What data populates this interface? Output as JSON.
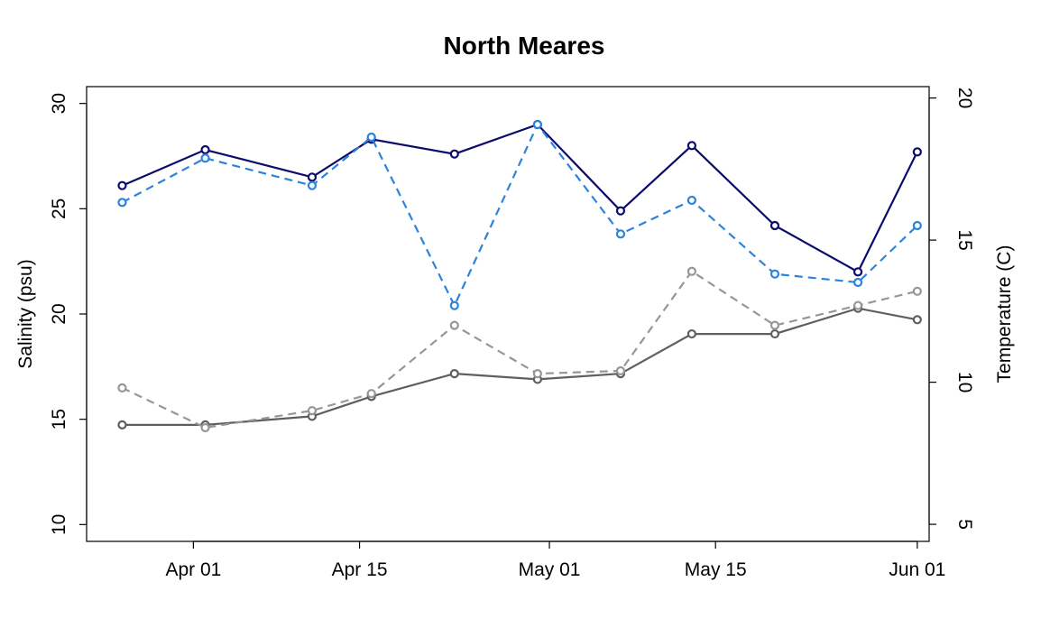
{
  "chart_data": {
    "type": "line",
    "title": "North Meares",
    "x_axis": {
      "ticks": [
        "2023-04-01",
        "2023-04-15",
        "2023-05-01",
        "2023-05-15",
        "2023-06-01"
      ],
      "tick_labels": [
        "Apr 01",
        "Apr 15",
        "May 01",
        "May 15",
        "Jun 01"
      ],
      "range": [
        "2023-03-23",
        "2023-06-02"
      ]
    },
    "y_left": {
      "label": "Salinity (psu)",
      "range": [
        9.2,
        30.8
      ],
      "ticks": [
        10,
        15,
        20,
        25,
        30
      ]
    },
    "y_right": {
      "label": "Temperature (C)",
      "range": [
        4.4,
        20.4
      ],
      "ticks": [
        5,
        10,
        15,
        20
      ]
    },
    "grid": false,
    "legend": "none",
    "series": [
      {
        "axis": "left",
        "style": "solid",
        "color": "#0b0b6b",
        "x": [
          "2023-03-26",
          "2023-04-02",
          "2023-04-11",
          "2023-04-16",
          "2023-04-23",
          "2023-04-30",
          "2023-05-07",
          "2023-05-13",
          "2023-05-20",
          "2023-05-27",
          "2023-06-01"
        ],
        "values": [
          26.1,
          27.8,
          26.5,
          28.3,
          27.6,
          29.0,
          24.9,
          28.0,
          24.2,
          22.0,
          27.7
        ]
      },
      {
        "axis": "left",
        "style": "dashed",
        "color": "#2b84db",
        "x": [
          "2023-03-26",
          "2023-04-02",
          "2023-04-11",
          "2023-04-16",
          "2023-04-23",
          "2023-04-30",
          "2023-05-07",
          "2023-05-13",
          "2023-05-20",
          "2023-05-27",
          "2023-06-01"
        ],
        "values": [
          25.3,
          27.4,
          26.1,
          28.4,
          20.4,
          29.0,
          23.8,
          25.4,
          21.9,
          21.5,
          24.2
        ]
      },
      {
        "axis": "right",
        "style": "solid",
        "color": "#5f5f5f",
        "x": [
          "2023-03-26",
          "2023-04-02",
          "2023-04-11",
          "2023-04-16",
          "2023-04-23",
          "2023-04-30",
          "2023-05-07",
          "2023-05-13",
          "2023-05-20",
          "2023-05-27",
          "2023-06-01"
        ],
        "values": [
          8.5,
          8.5,
          8.8,
          9.5,
          10.3,
          10.1,
          10.3,
          11.7,
          11.7,
          12.6,
          12.2
        ]
      },
      {
        "axis": "right",
        "style": "dashed",
        "color": "#979797",
        "x": [
          "2023-03-26",
          "2023-04-02",
          "2023-04-11",
          "2023-04-16",
          "2023-04-23",
          "2023-04-30",
          "2023-05-07",
          "2023-05-13",
          "2023-05-20",
          "2023-05-27",
          "2023-06-01"
        ],
        "values": [
          9.8,
          8.4,
          9.0,
          9.6,
          12.0,
          10.3,
          10.4,
          13.9,
          12.0,
          12.7,
          13.2
        ]
      }
    ]
  }
}
